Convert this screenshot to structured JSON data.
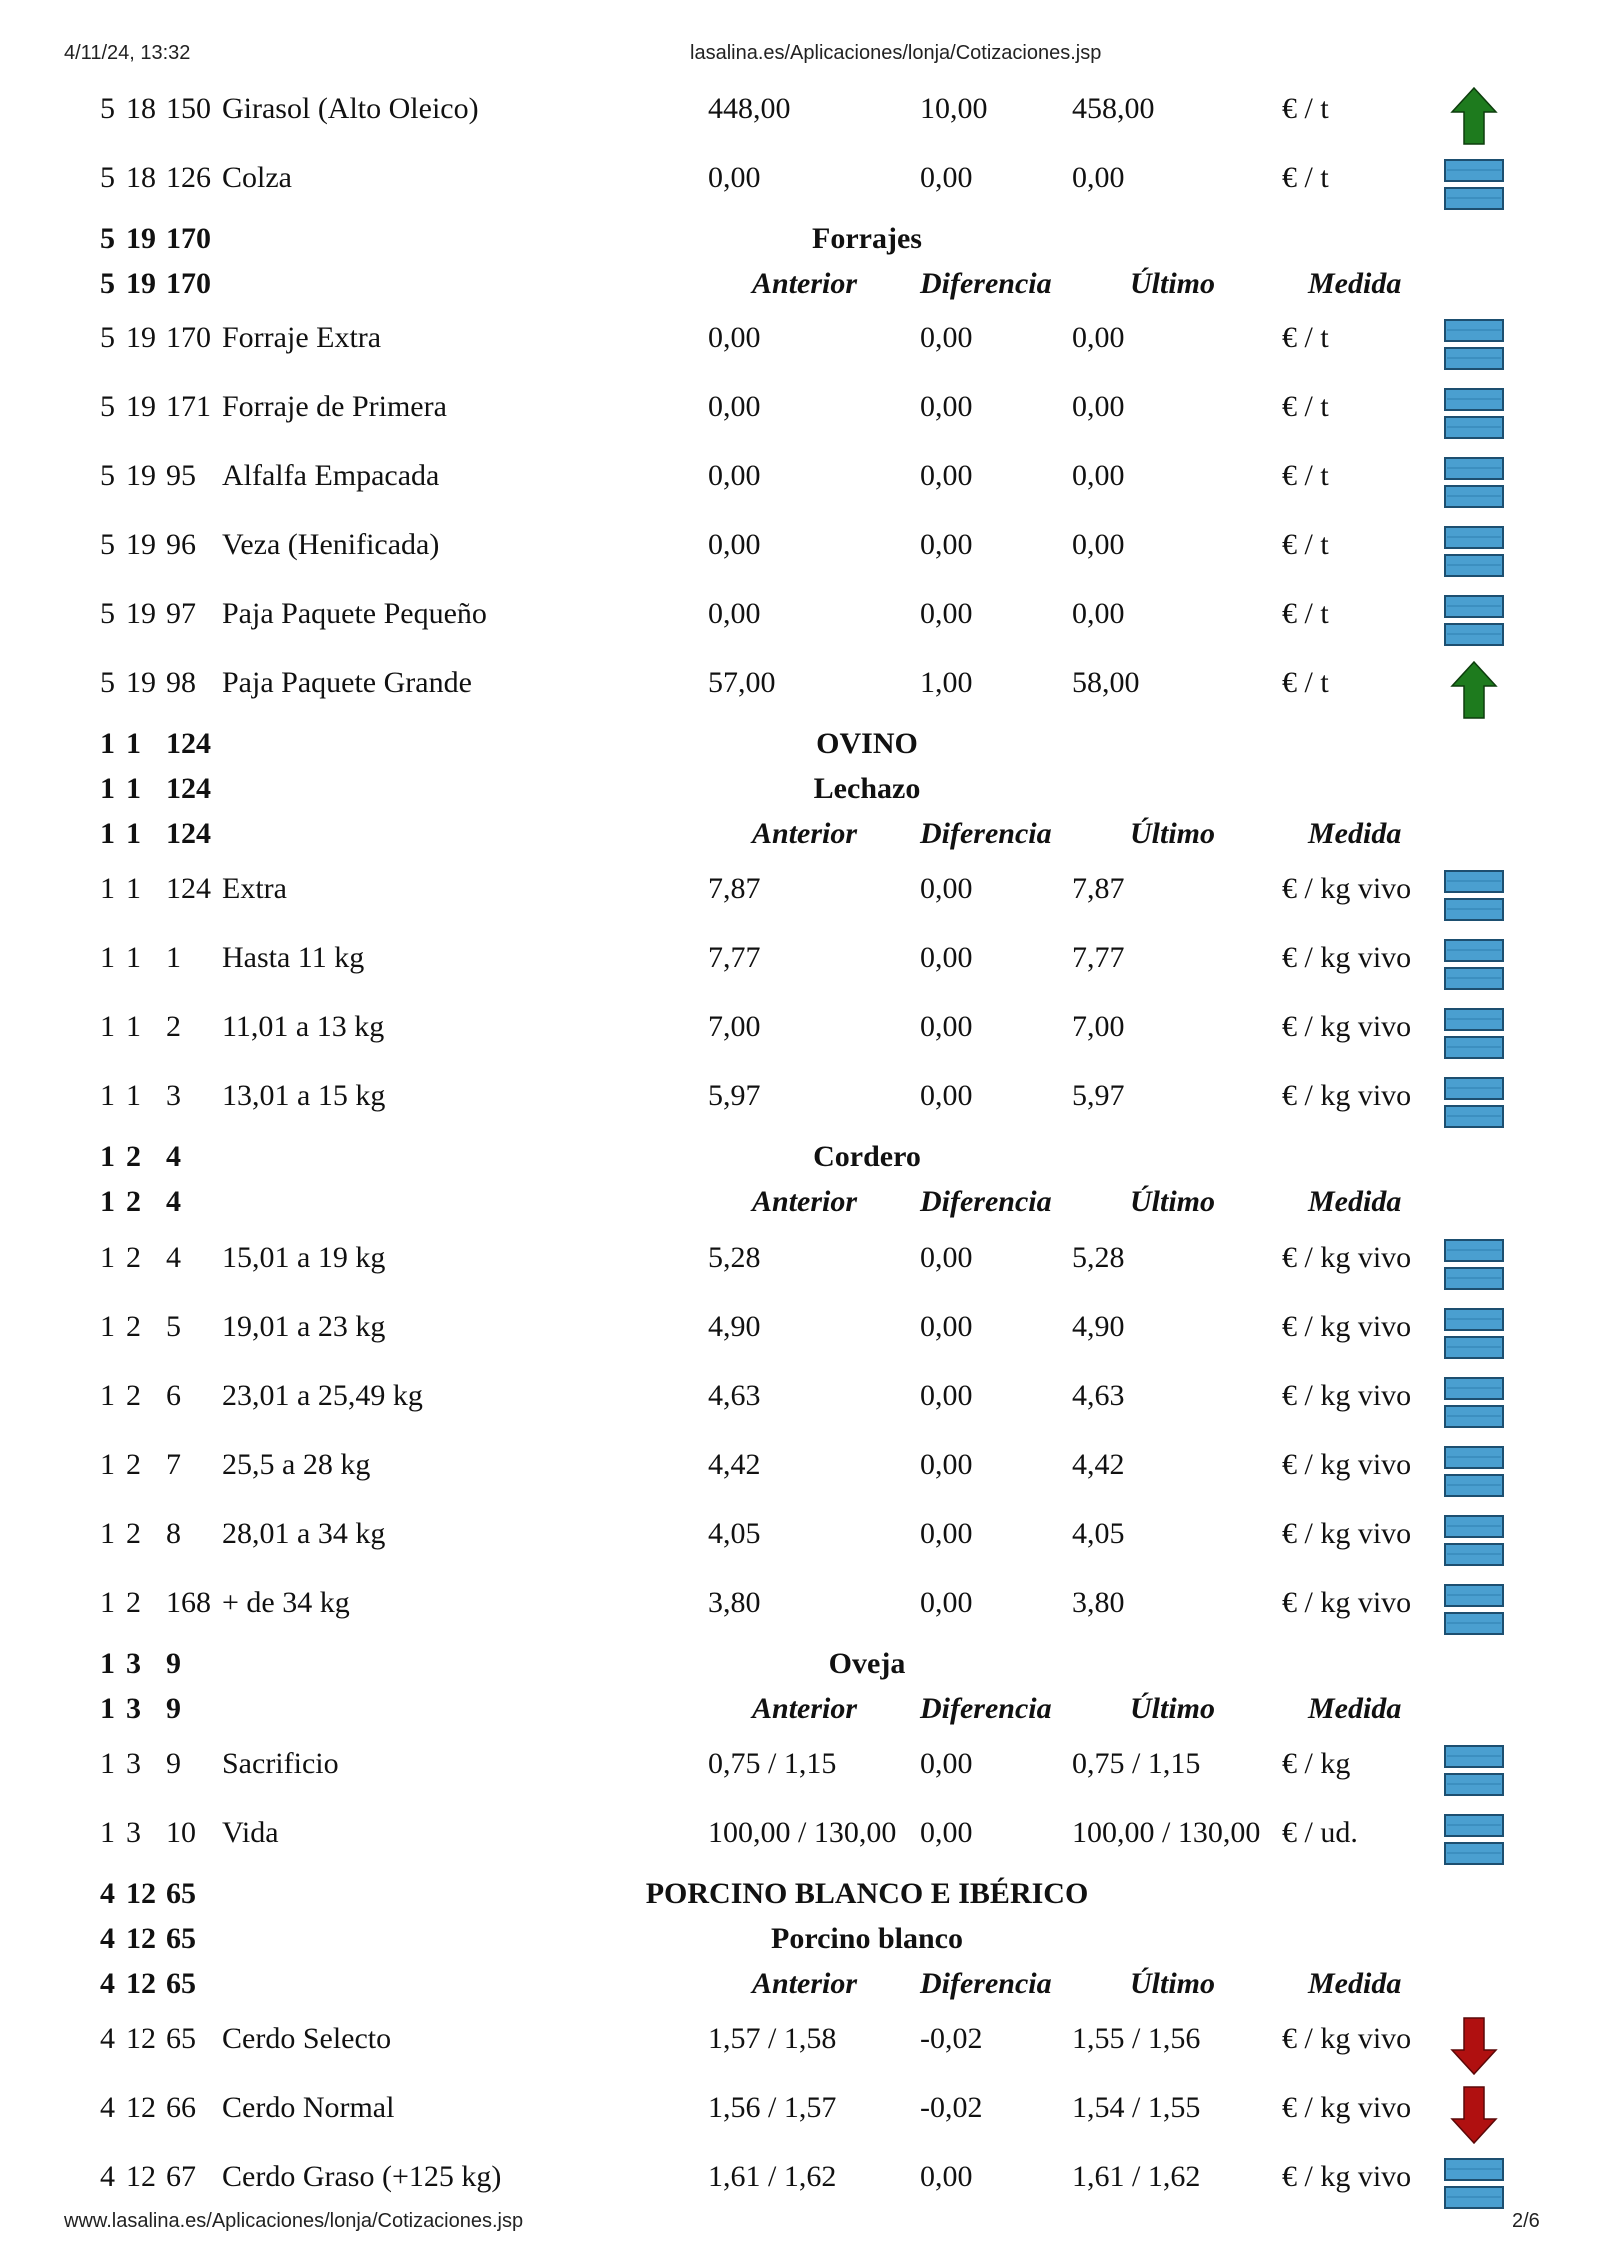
{
  "header": {
    "datetime": "4/11/24, 13:32",
    "url": "lasalina.es/Aplicaciones/lonja/Cotizaciones.jsp"
  },
  "footer": {
    "url": "www.lasalina.es/Aplicaciones/lonja/Cotizaciones.jsp",
    "page": "2/6"
  },
  "colors": {
    "up": "#1e7b1e",
    "down": "#b01010",
    "same": "#4a9fd0"
  },
  "col_headers": {
    "anterior": "Anterior",
    "diferencia": "Diferencia",
    "ultimo": "Último",
    "medida": "Medida"
  },
  "rows": [
    {
      "kind": "item",
      "c1": "5",
      "c2": "18",
      "c3": "150",
      "name": "Girasol (Alto Oleico)",
      "anterior": "448,00",
      "diferencia": "10,00",
      "ultimo": "458,00",
      "medida": "€ / t",
      "trend": "up"
    },
    {
      "kind": "item",
      "c1": "5",
      "c2": "18",
      "c3": "126",
      "name": "Colza",
      "anterior": "0,00",
      "diferencia": "0,00",
      "ultimo": "0,00",
      "medida": "€ / t",
      "trend": "same"
    },
    {
      "kind": "title",
      "c1": "5",
      "c2": "19",
      "c3": "170",
      "title": "Forrajes"
    },
    {
      "kind": "colhead",
      "c1": "5",
      "c2": "19",
      "c3": "170"
    },
    {
      "kind": "item",
      "c1": "5",
      "c2": "19",
      "c3": "170",
      "name": "Forraje Extra",
      "anterior": "0,00",
      "diferencia": "0,00",
      "ultimo": "0,00",
      "medida": "€ / t",
      "trend": "same"
    },
    {
      "kind": "item",
      "c1": "5",
      "c2": "19",
      "c3": "171",
      "name": "Forraje de Primera",
      "anterior": "0,00",
      "diferencia": "0,00",
      "ultimo": "0,00",
      "medida": "€ / t",
      "trend": "same"
    },
    {
      "kind": "item",
      "c1": "5",
      "c2": "19",
      "c3": "95",
      "name": "Alfalfa Empacada",
      "anterior": "0,00",
      "diferencia": "0,00",
      "ultimo": "0,00",
      "medida": "€ / t",
      "trend": "same"
    },
    {
      "kind": "item",
      "c1": "5",
      "c2": "19",
      "c3": "96",
      "name": "Veza (Henificada)",
      "anterior": "0,00",
      "diferencia": "0,00",
      "ultimo": "0,00",
      "medida": "€ / t",
      "trend": "same"
    },
    {
      "kind": "item",
      "c1": "5",
      "c2": "19",
      "c3": "97",
      "name": "Paja Paquete Pequeño",
      "anterior": "0,00",
      "diferencia": "0,00",
      "ultimo": "0,00",
      "medida": "€ / t",
      "trend": "same"
    },
    {
      "kind": "item",
      "c1": "5",
      "c2": "19",
      "c3": "98",
      "name": "Paja Paquete Grande",
      "anterior": "57,00",
      "diferencia": "1,00",
      "ultimo": "58,00",
      "medida": "€ / t",
      "trend": "up"
    },
    {
      "kind": "title",
      "c1": "1",
      "c2": "1",
      "c3": "124",
      "title": "OVINO"
    },
    {
      "kind": "title",
      "c1": "1",
      "c2": "1",
      "c3": "124",
      "title": "Lechazo"
    },
    {
      "kind": "colhead",
      "c1": "1",
      "c2": "1",
      "c3": "124"
    },
    {
      "kind": "item",
      "c1": "1",
      "c2": "1",
      "c3": "124",
      "name": "Extra",
      "anterior": "7,87",
      "diferencia": "0,00",
      "ultimo": "7,87",
      "medida": "€ / kg vivo",
      "trend": "same"
    },
    {
      "kind": "item",
      "c1": "1",
      "c2": "1",
      "c3": "1",
      "name": "Hasta 11 kg",
      "anterior": "7,77",
      "diferencia": "0,00",
      "ultimo": "7,77",
      "medida": "€ / kg vivo",
      "trend": "same"
    },
    {
      "kind": "item",
      "c1": "1",
      "c2": "1",
      "c3": "2",
      "name": "11,01 a 13 kg",
      "anterior": "7,00",
      "diferencia": "0,00",
      "ultimo": "7,00",
      "medida": "€ / kg vivo",
      "trend": "same"
    },
    {
      "kind": "item",
      "c1": "1",
      "c2": "1",
      "c3": "3",
      "name": "13,01 a 15 kg",
      "anterior": "5,97",
      "diferencia": "0,00",
      "ultimo": "5,97",
      "medida": "€ / kg vivo",
      "trend": "same"
    },
    {
      "kind": "title",
      "c1": "1",
      "c2": "2",
      "c3": "4",
      "title": "Cordero"
    },
    {
      "kind": "colhead",
      "c1": "1",
      "c2": "2",
      "c3": "4"
    },
    {
      "kind": "item",
      "c1": "1",
      "c2": "2",
      "c3": "4",
      "name": "15,01 a 19 kg",
      "anterior": "5,28",
      "diferencia": "0,00",
      "ultimo": "5,28",
      "medida": "€ / kg vivo",
      "trend": "same"
    },
    {
      "kind": "item",
      "c1": "1",
      "c2": "2",
      "c3": "5",
      "name": "19,01 a 23 kg",
      "anterior": "4,90",
      "diferencia": "0,00",
      "ultimo": "4,90",
      "medida": "€ / kg vivo",
      "trend": "same"
    },
    {
      "kind": "item",
      "c1": "1",
      "c2": "2",
      "c3": "6",
      "name": "23,01 a 25,49 kg",
      "anterior": "4,63",
      "diferencia": "0,00",
      "ultimo": "4,63",
      "medida": "€ / kg vivo",
      "trend": "same"
    },
    {
      "kind": "item",
      "c1": "1",
      "c2": "2",
      "c3": "7",
      "name": "25,5 a 28 kg",
      "anterior": "4,42",
      "diferencia": "0,00",
      "ultimo": "4,42",
      "medida": "€ / kg vivo",
      "trend": "same"
    },
    {
      "kind": "item",
      "c1": "1",
      "c2": "2",
      "c3": "8",
      "name": "28,01 a 34 kg",
      "anterior": "4,05",
      "diferencia": "0,00",
      "ultimo": "4,05",
      "medida": "€ / kg vivo",
      "trend": "same"
    },
    {
      "kind": "item",
      "c1": "1",
      "c2": "2",
      "c3": "168",
      "name": "+ de 34 kg",
      "anterior": "3,80",
      "diferencia": "0,00",
      "ultimo": "3,80",
      "medida": "€ / kg vivo",
      "trend": "same"
    },
    {
      "kind": "title",
      "c1": "1",
      "c2": "3",
      "c3": "9",
      "title": "Oveja"
    },
    {
      "kind": "colhead",
      "c1": "1",
      "c2": "3",
      "c3": "9"
    },
    {
      "kind": "item",
      "c1": "1",
      "c2": "3",
      "c3": "9",
      "name": "Sacrificio",
      "anterior": "0,75 / 1,15",
      "diferencia": "0,00",
      "ultimo": "0,75 / 1,15",
      "medida": "€ / kg",
      "trend": "same"
    },
    {
      "kind": "item",
      "c1": "1",
      "c2": "3",
      "c3": "10",
      "name": "Vida",
      "anterior": "100,00 / 130,00",
      "diferencia": "0,00",
      "ultimo": "100,00 / 130,00",
      "medida": "€ / ud.",
      "trend": "same"
    },
    {
      "kind": "title",
      "c1": "4",
      "c2": "12",
      "c3": "65",
      "title": "PORCINO BLANCO E IBÉRICO"
    },
    {
      "kind": "title",
      "c1": "4",
      "c2": "12",
      "c3": "65",
      "title": "Porcino blanco"
    },
    {
      "kind": "colhead",
      "c1": "4",
      "c2": "12",
      "c3": "65"
    },
    {
      "kind": "item",
      "c1": "4",
      "c2": "12",
      "c3": "65",
      "name": "Cerdo Selecto",
      "anterior": "1,57 / 1,58",
      "diferencia": "-0,02",
      "ultimo": "1,55 / 1,56",
      "medida": "€ / kg vivo",
      "trend": "down"
    },
    {
      "kind": "item",
      "c1": "4",
      "c2": "12",
      "c3": "66",
      "name": "Cerdo Normal",
      "anterior": "1,56 / 1,57",
      "diferencia": "-0,02",
      "ultimo": "1,54 / 1,55",
      "medida": "€ / kg vivo",
      "trend": "down"
    },
    {
      "kind": "item",
      "c1": "4",
      "c2": "12",
      "c3": "67",
      "name": "Cerdo Graso (+125 kg)",
      "anterior": "1,61 / 1,62",
      "diferencia": "0,00",
      "ultimo": "1,61 / 1,62",
      "medida": "€ / kg vivo",
      "trend": "same"
    }
  ]
}
